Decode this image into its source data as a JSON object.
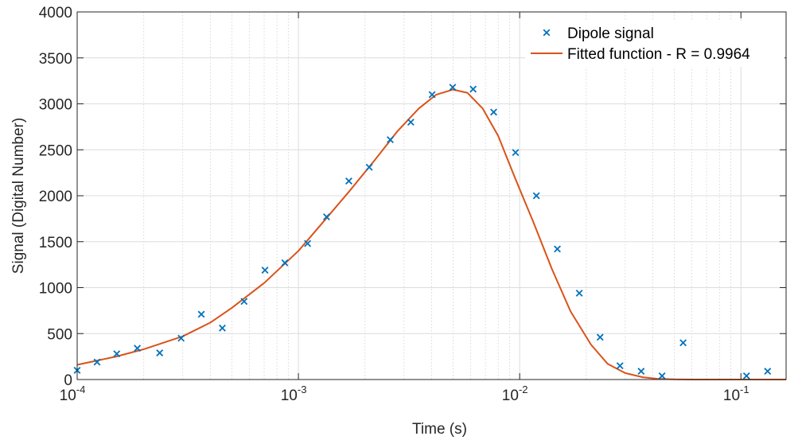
{
  "chart_data": {
    "type": "scatter",
    "title": "",
    "xlabel": "Time (s)",
    "ylabel": "Signal (Digital Number)",
    "xscale": "log",
    "xlim": [
      0.0001,
      0.16
    ],
    "ylim": [
      0,
      4000
    ],
    "xticks": [
      {
        "base": "10",
        "exp": "-4",
        "value": 0.0001
      },
      {
        "base": "10",
        "exp": "-3",
        "value": 0.001
      },
      {
        "base": "10",
        "exp": "-2",
        "value": 0.01
      },
      {
        "base": "10",
        "exp": "-1",
        "value": 0.1
      }
    ],
    "yticks": [
      "0",
      "500",
      "1000",
      "1500",
      "2000",
      "2500",
      "3000",
      "3500",
      "4000"
    ],
    "grid": true,
    "legend_position": "top-right",
    "series": [
      {
        "name": "Dipole signal",
        "kind": "scatter",
        "marker": "x",
        "color": "#0072BD",
        "x": [
          0.0001,
          0.000123,
          0.000151,
          0.000187,
          0.000236,
          0.000295,
          0.000364,
          0.000453,
          0.000568,
          0.000706,
          0.000868,
          0.0011,
          0.00134,
          0.00169,
          0.00209,
          0.0026,
          0.00322,
          0.00402,
          0.00498,
          0.00616,
          0.00763,
          0.00958,
          0.0119,
          0.0148,
          0.0186,
          0.0231,
          0.0284,
          0.0354,
          0.044,
          0.0548,
          0.106,
          0.132
        ],
        "y": [
          100,
          190,
          280,
          340,
          290,
          450,
          710,
          560,
          850,
          1190,
          1270,
          1480,
          1770,
          2160,
          2310,
          2610,
          2800,
          3100,
          3180,
          3160,
          2910,
          2470,
          2000,
          1420,
          940,
          460,
          150,
          90,
          40,
          400,
          40,
          90
        ]
      },
      {
        "name": "Fitted function - R = 0.9964",
        "kind": "line",
        "color": "#D95319",
        "x": [
          0.0001,
          0.00015,
          0.0002,
          0.0003,
          0.0004,
          0.0005,
          0.0007,
          0.001,
          0.0013,
          0.0017,
          0.0022,
          0.0028,
          0.0035,
          0.0042,
          0.005,
          0.0058,
          0.0068,
          0.008,
          0.0095,
          0.0115,
          0.014,
          0.017,
          0.021,
          0.025,
          0.03,
          0.036,
          0.042,
          0.05,
          0.06,
          0.075,
          0.1,
          0.16
        ],
        "y": [
          160,
          250,
          330,
          470,
          620,
          780,
          1050,
          1400,
          1720,
          2050,
          2380,
          2700,
          2950,
          3100,
          3155,
          3120,
          2950,
          2650,
          2200,
          1720,
          1200,
          740,
          380,
          170,
          70,
          25,
          8,
          2,
          0,
          0,
          0,
          0
        ]
      }
    ]
  }
}
